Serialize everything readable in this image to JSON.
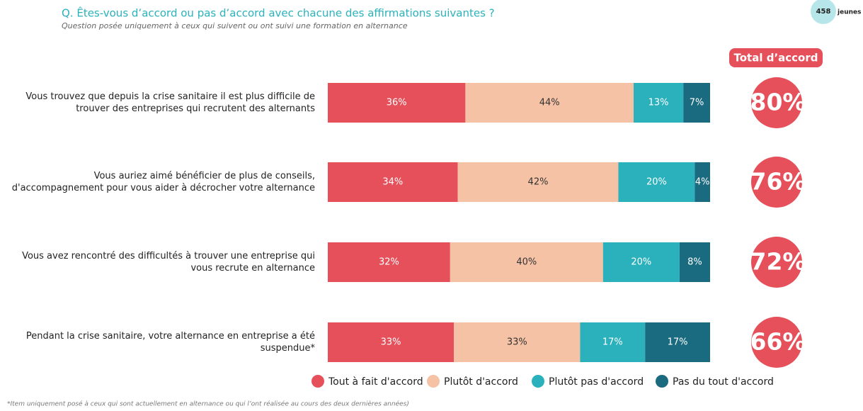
{
  "chart_data": {
    "type": "bar",
    "orientation": "horizontal",
    "stacked": true,
    "title": "Q. Êtes-vous d’accord ou pas d’accord avec chacune des affirmations suivantes ?",
    "subtitle": "Question posée uniquement à ceux qui suivent ou ont suivi une formation en alternance",
    "sample": {
      "count": 458,
      "label": "jeunes"
    },
    "footnote": "*Item uniquement posé à ceux qui sont actuellement en alternance ou qui l’ont réalisée au cours des deux dernières années)",
    "xlim": [
      0,
      100
    ],
    "categories": [
      "Vous trouvez que depuis la crise sanitaire il est plus difficile de trouver des entreprises qui recrutent des alternants",
      "Vous auriez aimé bénéficier de plus de conseils, d'accompagnement pour vous aider à décrocher votre alternance",
      "Vous avez rencontré des difficultés à trouver une entreprise qui vous recrute en alternance",
      "Pendant la crise sanitaire, votre alternance en entreprise a été suspendue*"
    ],
    "series": [
      {
        "name": "Tout à fait d'accord",
        "color": "#e5505a",
        "label_color": "#ffffff",
        "values": [
          36,
          34,
          32,
          33
        ],
        "value_labels": [
          "36%",
          "34%",
          "32%",
          "33%"
        ]
      },
      {
        "name": "Plutôt d'accord",
        "color": "#f5c2a5",
        "label_color": "#333333",
        "values": [
          44,
          42,
          40,
          33
        ],
        "value_labels": [
          "44%",
          "42%",
          "40%",
          "33%"
        ]
      },
      {
        "name": "Plutôt pas d'accord",
        "color": "#2ab1bb",
        "label_color": "#ffffff",
        "values": [
          13,
          20,
          20,
          17
        ],
        "value_labels": [
          "13%",
          "20%",
          "20%",
          "17%"
        ]
      },
      {
        "name": "Pas du tout d'accord",
        "color": "#1a6b80",
        "label_color": "#ffffff",
        "values": [
          7,
          4,
          8,
          17
        ],
        "value_labels": [
          "7%",
          "4%",
          "8%",
          "17%"
        ]
      }
    ],
    "totals": {
      "title": "Total d’accord",
      "color": "#e5505a",
      "values": [
        80,
        76,
        72,
        66
      ],
      "value_labels": [
        "80%",
        "76%",
        "72%",
        "66%"
      ]
    }
  }
}
